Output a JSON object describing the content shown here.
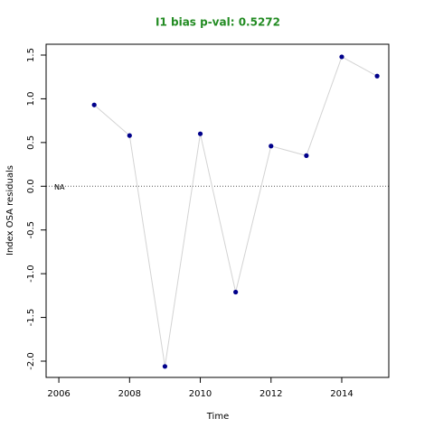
{
  "chart_data": {
    "type": "line",
    "title": "I1 bias p-val: 0.5272",
    "title_color": "#228b22",
    "x_label": "Time",
    "y_label": "Index OSA residuals",
    "x": [
      2007,
      2008,
      2009,
      2010,
      2011,
      2012,
      2013,
      2014,
      2015
    ],
    "series": [
      {
        "name": "I1",
        "color": "#00008b",
        "line_color": "#d3d3d3",
        "values": [
          0.93,
          0.58,
          -2.06,
          0.6,
          -1.21,
          0.46,
          0.35,
          1.48,
          1.26
        ]
      }
    ],
    "xlim": [
      2005.64,
      2015.33
    ],
    "xticks": [
      2006,
      2008,
      2010,
      2012,
      2014
    ],
    "ylim": [
      -2.186,
      1.624
    ],
    "yticks": [
      {
        "value": -2,
        "label": "-2.0"
      },
      -1.5,
      {
        "value": -1,
        "label": "-1.0"
      },
      -0.5,
      {
        "value": 0,
        "label": "0.0"
      },
      0.5,
      {
        "value": 1,
        "label": "1.0"
      },
      1.5
    ],
    "reference_line": 0,
    "annotation": "NA"
  }
}
